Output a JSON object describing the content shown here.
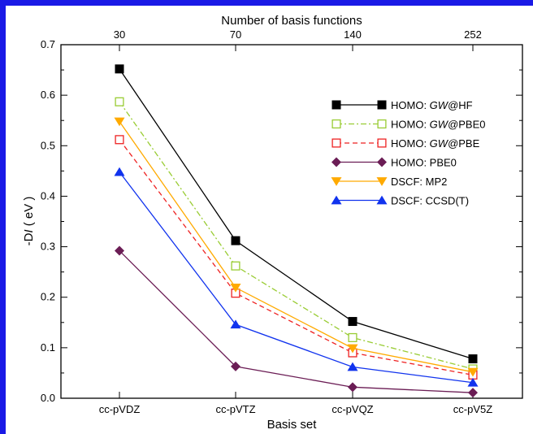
{
  "chart_data": {
    "type": "line",
    "categories": [
      "cc-pVDZ",
      "cc-pVTZ",
      "cc-pVQZ",
      "cc-pV5Z"
    ],
    "top_axis": {
      "label": "Number of basis functions",
      "ticks": [
        "30",
        "70",
        "140",
        "252"
      ]
    },
    "xlabel": "Basis set",
    "ylabel": "-DI (eV)",
    "ylabel_parts": {
      "prefix": "-D",
      "italic": "I",
      "suffix": " ( eV )"
    },
    "ylim": [
      0,
      0.7
    ],
    "yticks": [
      "0.0",
      "0.1",
      "0.2",
      "0.3",
      "0.4",
      "0.5",
      "0.6",
      "0.7"
    ],
    "legend_position": "top-right",
    "series": [
      {
        "name": "HOMO: GW@HF",
        "name_parts": [
          "HOMO: ",
          "GW",
          "@HF"
        ],
        "values": [
          0.652,
          0.312,
          0.152,
          0.078
        ],
        "color": "#000000",
        "marker": "square-filled",
        "dash": ""
      },
      {
        "name": "HOMO: GW@PBE0",
        "name_parts": [
          "HOMO: ",
          "GW",
          "@PBE0"
        ],
        "values": [
          0.587,
          0.262,
          0.12,
          0.058
        ],
        "color": "#99cc33",
        "marker": "square-open",
        "dash": "7,3,2,3"
      },
      {
        "name": "HOMO: GW@PBE",
        "name_parts": [
          "HOMO: ",
          "GW",
          "@PBE"
        ],
        "values": [
          0.512,
          0.208,
          0.09,
          0.046
        ],
        "color": "#ee2222",
        "marker": "square-open",
        "dash": "6,4"
      },
      {
        "name": "HOMO: PBE0",
        "name_parts": [
          "HOMO: PBE0",
          "",
          ""
        ],
        "values": [
          0.292,
          0.063,
          0.022,
          0.011
        ],
        "color": "#6b1d55",
        "marker": "diamond-filled",
        "dash": ""
      },
      {
        "name": "DSCF: MP2",
        "name_parts": [
          "DSCF: MP2",
          "",
          ""
        ],
        "values": [
          0.548,
          0.219,
          0.099,
          0.052
        ],
        "color": "#ffaa00",
        "marker": "triangle-down-filled",
        "dash": ""
      },
      {
        "name": "DSCF: CCSD(T)",
        "name_parts": [
          "DSCF: CCSD(T)",
          "",
          ""
        ],
        "values": [
          0.448,
          0.146,
          0.062,
          0.031
        ],
        "color": "#1133ee",
        "marker": "triangle-up-filled",
        "dash": ""
      }
    ]
  }
}
